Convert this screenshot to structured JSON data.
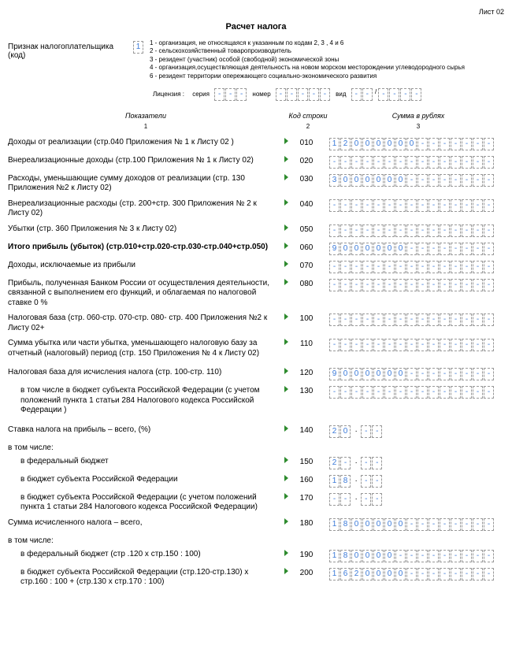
{
  "sheet_label": "Лист 02",
  "title": "Расчет налога",
  "taxpayer": {
    "label": "Признак налогоплательщика (код)",
    "code": "1",
    "notes": [
      "1 - организация, не относящаяся к указанным по кодам 2, 3 , 4 и 6",
      "2 - сельскохозяйственный товаропроизводитель",
      "3 - резидент (участник) особой (свободной) экономической зоны",
      "4 - организация,осуществляющая деятельность на новом морском месторождении углеводородного сырья",
      "6 - резидент территории опережающего социально-экономического развития"
    ]
  },
  "license": {
    "lbl": "Лицензия :",
    "series_lbl": "серия",
    "number_lbl": "номер",
    "vid_lbl": "вид"
  },
  "headers": {
    "h1": "Показатели",
    "h2": "Код строки",
    "h3": "Сумма в рублях",
    "n1": "1",
    "n2": "2",
    "n3": "3"
  },
  "rows": [
    {
      "desc": "Доходы от реализации (стр.040 Приложения № 1 к Листу 02 )",
      "code": "010",
      "value": "12000000",
      "len": 15
    },
    {
      "desc": "Внереализационные доходы (стр.100 Приложения № 1 к Листу 02)",
      "code": "020",
      "value": "",
      "len": 15
    },
    {
      "desc": "Расходы, уменьшающие сумму доходов от реализации (стр. 130 Приложения №2 к Листу 02)",
      "code": "030",
      "value": "3000000",
      "len": 15
    },
    {
      "desc": "Внереализационные расходы (стр. 200+стр. 300 Приложения № 2 к Листу 02)",
      "code": "040",
      "value": "",
      "len": 15
    },
    {
      "desc": "Убытки (стр. 360 Приложения № 3 к Листу 02)",
      "code": "050",
      "value": "",
      "len": 15
    },
    {
      "desc": "Итого прибыль (убыток) (стр.010+стр.020-стр.030-стр.040+стр.050)",
      "code": "060",
      "value": "9000000",
      "len": 15,
      "bold": true
    },
    {
      "desc": "Доходы, исключаемые из прибыли",
      "code": "070",
      "value": "",
      "len": 15
    },
    {
      "desc": "Прибыль, полученная Банком России от осуществления деятельности, связанной с выполнением его функций, и облагаемая по налоговой ставке 0 %",
      "code": "080",
      "value": "",
      "len": 15
    },
    {
      "desc": "Налоговая база (стр. 060-стр. 070-стр. 080- стр. 400 Приложения №2 к Листу 02+",
      "code": "100",
      "value": "",
      "len": 15
    },
    {
      "desc": "Сумма убытка или части убытка, уменьшающего налоговую базу за отчетный (налоговый) период (стр. 150 Приложения № 4 к Листу 02)",
      "code": "110",
      "value": "",
      "len": 15
    },
    {
      "desc": "Налоговая база для исчисления налога (стр. 100-стр. 110)",
      "code": "120",
      "value": "9000000",
      "len": 15,
      "topspace": true
    },
    {
      "desc": "в том числе в бюджет субъекта Российской Федерации (с учетом положений пункта 1 статьи 284 Налогового кодекса Российской Федерации )",
      "code": "130",
      "value": "",
      "len": 15,
      "indent": true
    },
    {
      "desc": "Ставка налога на прибыль – всего, (%)",
      "code": "140",
      "value": "20",
      "len": 2,
      "dot": true,
      "dec": 2,
      "topspace": true
    }
  ],
  "subheader1": "в том числе:",
  "rows2": [
    {
      "desc": "в федеральный бюджет",
      "code": "150",
      "value": "2",
      "len": 2,
      "dot": true,
      "dec": 2,
      "indent": true
    },
    {
      "desc": "в бюджет субъекта Российской Федерации",
      "code": "160",
      "value": "18",
      "len": 2,
      "dot": true,
      "dec": 2,
      "indent": true
    },
    {
      "desc": "в бюджет субъекта Российской Федерации (с учетом положений пункта 1 статьи 284 Налогового кодекса Российской Федерации)",
      "code": "170",
      "value": "",
      "len": 2,
      "dot": true,
      "dec": 2,
      "indent": true
    },
    {
      "desc": "Сумма исчисленного налога  – всего,",
      "code": "180",
      "value": "1800000",
      "len": 15
    }
  ],
  "subheader2": "в том числе:",
  "rows3": [
    {
      "desc": "в федеральный бюджет (стр .120 х стр.150 : 100)",
      "code": "190",
      "value": "180000",
      "len": 15,
      "indent": true
    },
    {
      "desc": "в бюджет субъекта Российской Федерации (стр.120-стр.130) х стр.160 : 100 + (стр.130 х стр.170 : 100)",
      "code": "200",
      "value": "1620000",
      "len": 15,
      "indent": true
    }
  ]
}
